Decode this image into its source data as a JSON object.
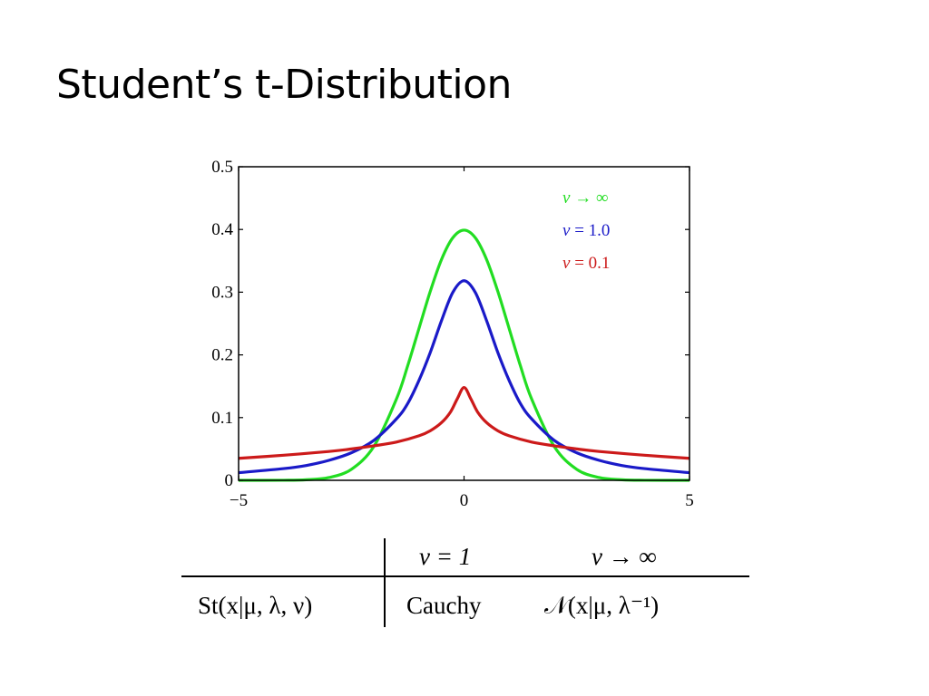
{
  "slide": {
    "title": "Student’s t-Distribution"
  },
  "chart_data": {
    "type": "line",
    "title": "",
    "xlabel": "",
    "ylabel": "",
    "xlim": [
      -5,
      5
    ],
    "ylim": [
      0,
      0.5
    ],
    "x_ticks": [
      -5,
      0,
      5
    ],
    "x_tick_labels": [
      "−5",
      "0",
      "5"
    ],
    "y_ticks": [
      0,
      0.1,
      0.2,
      0.3,
      0.4,
      0.5
    ],
    "y_tick_labels": [
      "0",
      "0.1",
      "0.2",
      "0.3",
      "0.4",
      "0.5"
    ],
    "grid": false,
    "legend_placement": "top-right",
    "series": [
      {
        "name": "ν → ∞",
        "name_symbol": "ν",
        "name_rest": " → ∞",
        "color": "#22dd22",
        "x": [
          -5,
          -4,
          -3.5,
          -3,
          -2.5,
          -2,
          -1.5,
          -1.25,
          -1,
          -0.75,
          -0.5,
          -0.25,
          0,
          0.25,
          0.5,
          0.75,
          1,
          1.25,
          1.5,
          2,
          2.5,
          3,
          3.5,
          4,
          5
        ],
        "y": [
          0.0,
          0.0001,
          0.0009,
          0.0044,
          0.0175,
          0.054,
          0.1295,
          0.1826,
          0.242,
          0.3011,
          0.3521,
          0.3867,
          0.3989,
          0.3867,
          0.3521,
          0.3011,
          0.242,
          0.1826,
          0.1295,
          0.054,
          0.0175,
          0.0044,
          0.0009,
          0.0001,
          0.0
        ]
      },
      {
        "name": "ν = 1.0",
        "name_symbol": "ν",
        "name_rest": " = 1.0",
        "color": "#1a1ac8",
        "x": [
          -5,
          -4,
          -3.5,
          -3,
          -2.5,
          -2,
          -1.5,
          -1.25,
          -1,
          -0.75,
          -0.5,
          -0.25,
          0,
          0.25,
          0.5,
          0.75,
          1,
          1.25,
          1.5,
          2,
          2.5,
          3,
          3.5,
          4,
          5
        ],
        "y": [
          0.0122,
          0.0187,
          0.0236,
          0.0318,
          0.0439,
          0.0637,
          0.0979,
          0.1224,
          0.1592,
          0.2037,
          0.2546,
          0.2996,
          0.3183,
          0.2996,
          0.2546,
          0.2037,
          0.1592,
          0.1224,
          0.0979,
          0.0637,
          0.0439,
          0.0318,
          0.0236,
          0.0187,
          0.0122
        ]
      },
      {
        "name": "ν = 0.1",
        "name_symbol": "ν",
        "name_rest": " = 0.1",
        "color": "#cc1a1a",
        "x": [
          -5,
          -4,
          -3,
          -2.5,
          -2,
          -1.5,
          -1,
          -0.75,
          -0.5,
          -0.3,
          -0.15,
          0,
          0.15,
          0.3,
          0.5,
          0.75,
          1,
          1.5,
          2,
          2.5,
          3,
          4,
          5
        ],
        "y": [
          0.035,
          0.04,
          0.046,
          0.05,
          0.055,
          0.061,
          0.071,
          0.079,
          0.092,
          0.109,
          0.13,
          0.148,
          0.13,
          0.109,
          0.092,
          0.079,
          0.071,
          0.061,
          0.055,
          0.05,
          0.046,
          0.04,
          0.035
        ]
      }
    ]
  },
  "table": {
    "header_col2": "ν = 1",
    "header_col3": "ν → ∞",
    "row_label": "St(x|μ, λ, ν)",
    "row_col2": "Cauchy",
    "row_col3": "𝒩(x|μ, λ⁻¹)"
  }
}
